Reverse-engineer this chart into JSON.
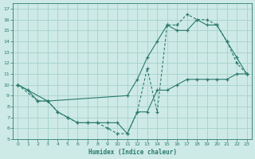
{
  "xlabel": "Humidex (Indice chaleur)",
  "background_color": "#ceeae6",
  "grid_color": "#aad4ce",
  "line_color": "#2a7a6e",
  "xlim": [
    -0.5,
    23.5
  ],
  "ylim": [
    5,
    17.5
  ],
  "xticks": [
    0,
    1,
    2,
    3,
    4,
    5,
    6,
    7,
    8,
    9,
    10,
    11,
    12,
    13,
    14,
    15,
    16,
    17,
    18,
    19,
    20,
    21,
    22,
    23
  ],
  "yticks": [
    5,
    6,
    7,
    8,
    9,
    10,
    11,
    12,
    13,
    14,
    15,
    16,
    17
  ],
  "line1_x": [
    0,
    1,
    2,
    3,
    4,
    5,
    6,
    7,
    8,
    9,
    10,
    11,
    12,
    13,
    14,
    15,
    16,
    17,
    18,
    19,
    20,
    21,
    22,
    23
  ],
  "line1_y": [
    10,
    9.5,
    8.5,
    8.5,
    7.5,
    7.0,
    6.5,
    6.5,
    6.5,
    6.5,
    6.5,
    5.5,
    7.5,
    7.5,
    9.5,
    9.5,
    10,
    10.5,
    10.5,
    10.5,
    10.5,
    10.5,
    11,
    11
  ],
  "line2_x": [
    0,
    2,
    3,
    4,
    5,
    6,
    7,
    8,
    9,
    10,
    11,
    12,
    13,
    14,
    15,
    16,
    17,
    18,
    19,
    20,
    21,
    22,
    23
  ],
  "line2_y": [
    10,
    8.5,
    8.5,
    7.5,
    7.0,
    6.5,
    6.5,
    6.5,
    6.0,
    5.5,
    5.5,
    7.5,
    11.5,
    7.5,
    15.5,
    15.5,
    16.5,
    16.0,
    16.0,
    15.5,
    14.0,
    12.0,
    11.0
  ],
  "line3_x": [
    0,
    3,
    11,
    12,
    13,
    14,
    15,
    16,
    17,
    18,
    19,
    20,
    21,
    22,
    23
  ],
  "line3_y": [
    10,
    8.5,
    9.0,
    10.5,
    12.5,
    14.0,
    15.5,
    15.0,
    15.0,
    16.0,
    15.5,
    15.5,
    14.0,
    12.5,
    11.0
  ]
}
